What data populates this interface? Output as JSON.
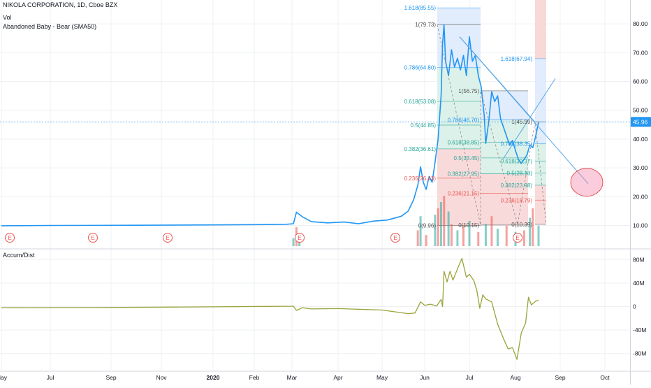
{
  "header": {
    "title": "NIKOLA CORPORATION, 1D, Cboe BZX",
    "vol_label": "Vol",
    "pattern_label": "Abandoned Baby - Bear (SMA50)",
    "accum_label": "Accum/Dist"
  },
  "colors": {
    "price_line": "#2196f3",
    "ad_line": "#9aa33b",
    "grid": "#eef0f3",
    "fib_blue": "#dce9fb",
    "fib_green": "#d6efe5",
    "fib_red": "#f8d4d4",
    "fib_text_blue": "#2196f3",
    "fib_text_green": "#26a69a",
    "fib_text_red": "#ef5350",
    "price_badge": "#2196f3"
  },
  "price_axis": {
    "ticks": [
      "80.00",
      "70.00",
      "60.00",
      "50.00",
      "40.00",
      "30.00",
      "20.00",
      "10.00"
    ],
    "last_price": "45.96"
  },
  "ad_axis": {
    "ticks": [
      "80M",
      "40M",
      "0",
      "-40M",
      "-80M"
    ]
  },
  "time_axis": {
    "labels": [
      "May",
      "Jul",
      "Sep",
      "Nov",
      "2020",
      "Feb",
      "Mar",
      "Apr",
      "May",
      "Jun",
      "Jul",
      "Aug",
      "Sep",
      "Oct"
    ]
  },
  "earnings_marker": "E",
  "fib_sets": [
    {
      "levels": [
        {
          "label": "1.618(85.55)",
          "tone": "blue"
        },
        {
          "label": "1(79.73)",
          "tone": "gray"
        },
        {
          "label": "0.786(64.80)",
          "tone": "blue"
        },
        {
          "label": "0.618(53.08)",
          "tone": "green"
        },
        {
          "label": "0.5(44.85)",
          "tone": "green"
        },
        {
          "label": "0.382(36.61)",
          "tone": "green"
        },
        {
          "label": "0.236(26.43)",
          "tone": "red"
        },
        {
          "label": "0(9.96)",
          "tone": "gray"
        }
      ]
    },
    {
      "levels": [
        {
          "label": "1(56.75)",
          "tone": "gray"
        },
        {
          "label": "0.786(46.70)",
          "tone": "blue"
        },
        {
          "label": "0.618(38.85)",
          "tone": "green"
        },
        {
          "label": "0.5(33.45)",
          "tone": "green"
        },
        {
          "label": "0.382(27.95)",
          "tone": "green"
        },
        {
          "label": "0.236(21.15)",
          "tone": "red"
        },
        {
          "label": "0(10.15)",
          "tone": "gray"
        }
      ]
    },
    {
      "levels": [
        {
          "label": "1.618(67.94)",
          "tone": "blue"
        },
        {
          "label": "1(45.99)",
          "tone": "gray"
        },
        {
          "label": "0.786(38.35)",
          "tone": "blue"
        },
        {
          "label": "0.618(32.37)",
          "tone": "green"
        },
        {
          "label": "0.5(28.18)",
          "tone": "green"
        },
        {
          "label": "0.382(23.98)",
          "tone": "green"
        },
        {
          "label": "0.236(18.79)",
          "tone": "red"
        },
        {
          "label": "0(10.39)",
          "tone": "gray"
        }
      ]
    }
  ],
  "chart_data": [
    {
      "type": "line",
      "y_axis_range": [
        0,
        88
      ],
      "x_axis_range": [
        "2019-05-01",
        "2020-10-20"
      ],
      "series": [
        {
          "values": [
            [
              "2019-05-01",
              9.9
            ],
            [
              "2019-07-01",
              10.0
            ],
            [
              "2019-09-01",
              10.05
            ],
            [
              "2019-11-01",
              10.1
            ],
            [
              "2020-01-01",
              10.2
            ],
            [
              "2020-02-01",
              10.3
            ],
            [
              "2020-02-25",
              10.4
            ],
            [
              "2020-03-02",
              10.6
            ],
            [
              "2020-03-04",
              14.6
            ],
            [
              "2020-03-08",
              13.0
            ],
            [
              "2020-03-14",
              11.3
            ],
            [
              "2020-03-25",
              10.9
            ],
            [
              "2020-04-05",
              11.2
            ],
            [
              "2020-04-15",
              10.6
            ],
            [
              "2020-04-25",
              11.5
            ],
            [
              "2020-05-05",
              11.9
            ],
            [
              "2020-05-15",
              13.2
            ],
            [
              "2020-05-20",
              15.0
            ],
            [
              "2020-05-24",
              19.0
            ],
            [
              "2020-05-27",
              24.0
            ],
            [
              "2020-05-29",
              30.4
            ],
            [
              "2020-05-31",
              25.0
            ],
            [
              "2020-06-02",
              22.5
            ],
            [
              "2020-06-04",
              27.0
            ],
            [
              "2020-06-06",
              25.0
            ],
            [
              "2020-06-08",
              32.0
            ],
            [
              "2020-06-10",
              40.0
            ],
            [
              "2020-06-12",
              55.0
            ],
            [
              "2020-06-13",
              73.0
            ],
            [
              "2020-06-14",
              79.7
            ],
            [
              "2020-06-15",
              67.0
            ],
            [
              "2020-06-17",
              62.0
            ],
            [
              "2020-06-19",
              71.0
            ],
            [
              "2020-06-21",
              65.0
            ],
            [
              "2020-06-23",
              68.0
            ],
            [
              "2020-06-25",
              64.0
            ],
            [
              "2020-06-27",
              69.0
            ],
            [
              "2020-06-29",
              62.0
            ],
            [
              "2020-07-01",
              75.5
            ],
            [
              "2020-07-03",
              67.0
            ],
            [
              "2020-07-05",
              69.0
            ],
            [
              "2020-07-07",
              62.0
            ],
            [
              "2020-07-09",
              58.0
            ],
            [
              "2020-07-11",
              48.0
            ],
            [
              "2020-07-12",
              38.5
            ],
            [
              "2020-07-14",
              46.0
            ],
            [
              "2020-07-16",
              56.5
            ],
            [
              "2020-07-18",
              53.0
            ],
            [
              "2020-07-20",
              55.0
            ],
            [
              "2020-07-22",
              47.0
            ],
            [
              "2020-07-24",
              44.0
            ],
            [
              "2020-07-26",
              41.0
            ],
            [
              "2020-07-28",
              38.0
            ],
            [
              "2020-07-30",
              39.5
            ],
            [
              "2020-08-01",
              36.0
            ],
            [
              "2020-08-03",
              33.0
            ],
            [
              "2020-08-05",
              31.5
            ],
            [
              "2020-08-07",
              33.0
            ],
            [
              "2020-08-09",
              34.5
            ],
            [
              "2020-08-11",
              38.0
            ],
            [
              "2020-08-13",
              37.0
            ],
            [
              "2020-08-15",
              41.0
            ],
            [
              "2020-08-17",
              45.9
            ]
          ]
        }
      ]
    },
    {
      "type": "bar",
      "series": [
        {
          "values": [
            [
              "2020-03-02",
              2.5
            ],
            [
              "2020-03-04",
              6.0
            ],
            [
              "2020-03-06",
              3.0
            ],
            [
              "2020-05-27",
              5.0
            ],
            [
              "2020-05-29",
              9.5
            ],
            [
              "2020-06-02",
              3.5
            ],
            [
              "2020-06-08",
              10.0
            ],
            [
              "2020-06-10",
              12.0
            ],
            [
              "2020-06-12",
              14.0
            ],
            [
              "2020-06-14",
              16.0
            ],
            [
              "2020-06-17",
              11.0
            ],
            [
              "2020-06-19",
              7.0
            ],
            [
              "2020-06-23",
              5.0
            ],
            [
              "2020-06-27",
              6.5
            ],
            [
              "2020-07-01",
              8.0
            ],
            [
              "2020-07-07",
              4.5
            ],
            [
              "2020-07-12",
              7.0
            ],
            [
              "2020-07-16",
              9.5
            ],
            [
              "2020-07-20",
              5.5
            ],
            [
              "2020-07-26",
              6.5
            ],
            [
              "2020-08-01",
              4.5
            ],
            [
              "2020-08-07",
              5.0
            ],
            [
              "2020-08-11",
              9.0
            ],
            [
              "2020-08-13",
              12.0
            ],
            [
              "2020-08-17",
              6.5
            ]
          ]
        }
      ]
    },
    {
      "type": "line",
      "y_axis_range": [
        -100,
        100
      ],
      "series": [
        {
          "values": [
            [
              "2019-05-01",
              -2
            ],
            [
              "2019-09-01",
              -1.5
            ],
            [
              "2020-01-01",
              -0.5
            ],
            [
              "2020-02-25",
              0.5
            ],
            [
              "2020-03-02",
              0.5
            ],
            [
              "2020-03-04",
              -6.5
            ],
            [
              "2020-03-08",
              -2
            ],
            [
              "2020-03-14",
              -4
            ],
            [
              "2020-04-01",
              -3.5
            ],
            [
              "2020-05-01",
              -6
            ],
            [
              "2020-05-20",
              -12
            ],
            [
              "2020-05-25",
              -11
            ],
            [
              "2020-05-29",
              8
            ],
            [
              "2020-06-01",
              2
            ],
            [
              "2020-06-05",
              4
            ],
            [
              "2020-06-09",
              1
            ],
            [
              "2020-06-12",
              12
            ],
            [
              "2020-06-13",
              0
            ],
            [
              "2020-06-14",
              60
            ],
            [
              "2020-06-16",
              42
            ],
            [
              "2020-06-18",
              60
            ],
            [
              "2020-06-20",
              45
            ],
            [
              "2020-06-23",
              64
            ],
            [
              "2020-06-26",
              82
            ],
            [
              "2020-06-29",
              50
            ],
            [
              "2020-07-01",
              55
            ],
            [
              "2020-07-04",
              44
            ],
            [
              "2020-07-06",
              28
            ],
            [
              "2020-07-08",
              -3
            ],
            [
              "2020-07-10",
              20
            ],
            [
              "2020-07-12",
              13
            ],
            [
              "2020-07-16",
              8
            ],
            [
              "2020-07-20",
              -30
            ],
            [
              "2020-07-24",
              -55
            ],
            [
              "2020-07-27",
              -72
            ],
            [
              "2020-07-30",
              -70
            ],
            [
              "2020-08-02",
              -90
            ],
            [
              "2020-08-05",
              -45
            ],
            [
              "2020-08-08",
              -28
            ],
            [
              "2020-08-10",
              16
            ],
            [
              "2020-08-12",
              3
            ],
            [
              "2020-08-15",
              9
            ],
            [
              "2020-08-17",
              11
            ]
          ]
        }
      ]
    }
  ]
}
